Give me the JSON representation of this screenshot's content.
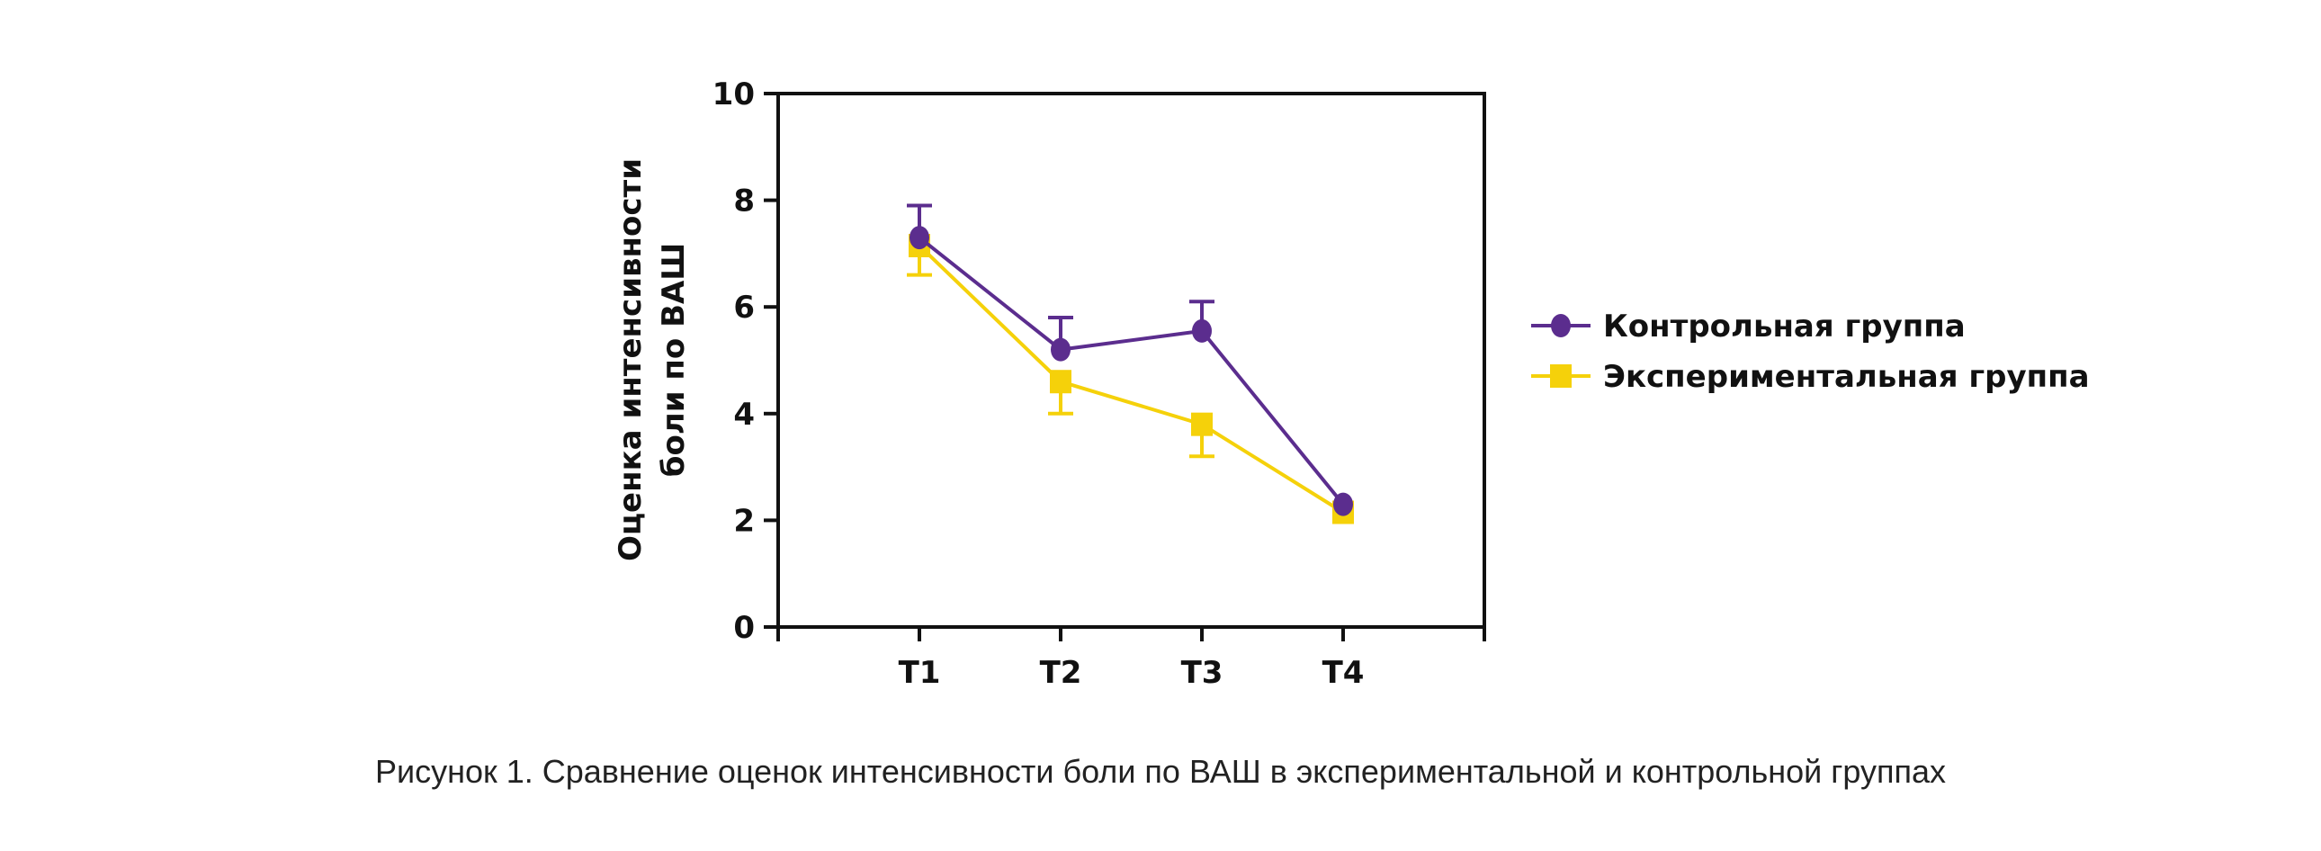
{
  "chart_data": {
    "type": "line",
    "title": "",
    "caption": "Рисунок 1. Сравнение оценок интенсивности боли по ВАШ в экспериментальной и контрольной группах",
    "ylabel_lines": [
      "Оценка интенсивности",
      "боли по ВАШ"
    ],
    "xlabel": "",
    "categories": [
      "T1",
      "T2",
      "T3",
      "T4"
    ],
    "ylim": [
      0,
      10
    ],
    "yticks": [
      0,
      2,
      4,
      6,
      8,
      10
    ],
    "grid": false,
    "legend_position": "right",
    "series": [
      {
        "name": "Контрольная группа",
        "marker": "circle",
        "color": "#5b2d8e",
        "values": [
          7.3,
          5.2,
          5.55,
          2.3
        ],
        "error_upper": [
          7.9,
          5.8,
          6.1,
          2.3
        ]
      },
      {
        "name": "Экспериментальная группа",
        "marker": "square",
        "color": "#f5d10a",
        "values": [
          7.15,
          4.6,
          3.8,
          2.15
        ],
        "error_lower": [
          6.6,
          4.0,
          3.2,
          2.15
        ]
      }
    ]
  }
}
